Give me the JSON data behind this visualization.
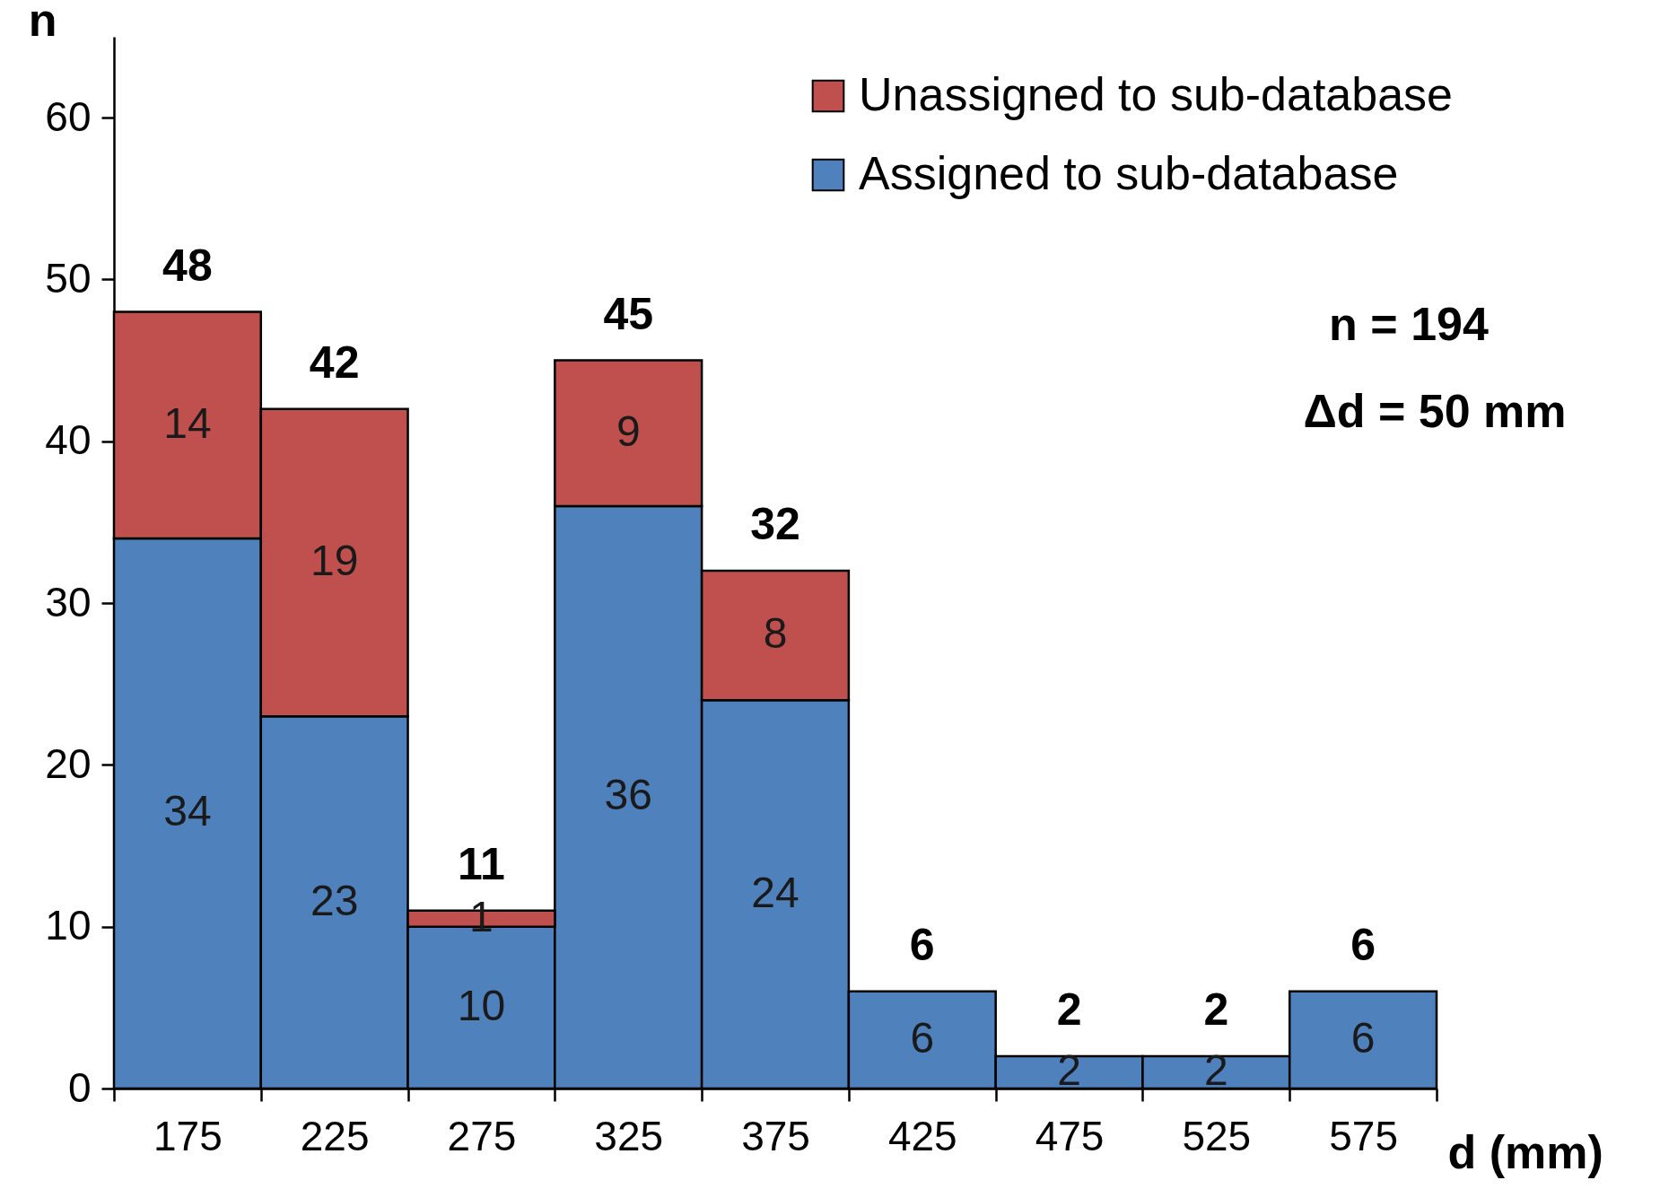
{
  "chart_data": {
    "type": "bar",
    "stacked": true,
    "categories": [
      "175",
      "225",
      "275",
      "325",
      "375",
      "425",
      "475",
      "525",
      "575"
    ],
    "series": [
      {
        "name": "Assigned to sub-database",
        "color": "#4f81bd",
        "values": [
          34,
          23,
          10,
          36,
          24,
          6,
          2,
          2,
          6
        ],
        "value_labels": [
          "34",
          "23",
          "10",
          "36",
          "24",
          "6",
          "2",
          "2",
          "6"
        ]
      },
      {
        "name": "Unassigned to sub-database",
        "color": "#c0504d",
        "values": [
          14,
          19,
          1,
          9,
          8,
          null,
          null,
          null,
          null
        ],
        "value_labels": [
          "14",
          "19",
          "1",
          "9",
          "8",
          null,
          null,
          null,
          null
        ]
      }
    ],
    "totals": [
      "48",
      "42",
      "11",
      "45",
      "32",
      "6",
      "2",
      "2",
      "6"
    ],
    "ylim": [
      0,
      65
    ],
    "yticks": [
      0,
      10,
      20,
      30,
      40,
      50,
      60
    ],
    "xlabel": "d (mm)",
    "ylabel": "n",
    "legend": "top right",
    "annotations": [
      "n = 194",
      "Δd = 50 mm"
    ]
  }
}
